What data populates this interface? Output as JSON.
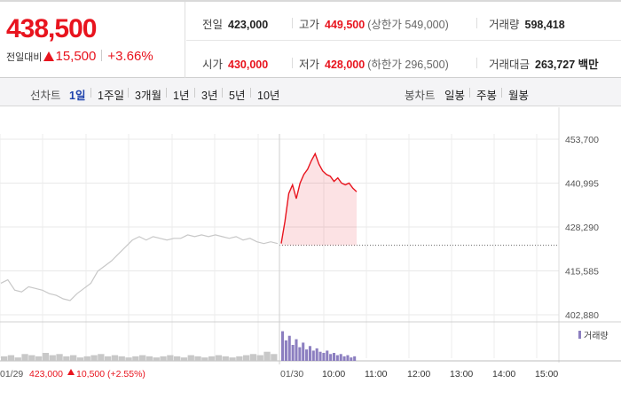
{
  "stock": {
    "price": "438,500",
    "change_label": "전일대비",
    "change_amount": "15,500",
    "change_percent": "+3.66%"
  },
  "stats": {
    "prev_close": {
      "label": "전일",
      "value": "423,000"
    },
    "high": {
      "label": "고가",
      "value": "449,500",
      "limit_label": "상한가",
      "limit_value": "549,000"
    },
    "volume": {
      "label": "거래량",
      "value": "598,418"
    },
    "open": {
      "label": "시가",
      "value": "430,000"
    },
    "low": {
      "label": "저가",
      "value": "428,000",
      "limit_label": "하한가",
      "limit_value": "296,500"
    },
    "trade_value": {
      "label": "거래대금",
      "value": "263,727 백만"
    }
  },
  "toolbar": {
    "line_chart_label": "선차트",
    "periods": [
      "1일",
      "1주일",
      "3개월",
      "1년",
      "3년",
      "5년",
      "10년"
    ],
    "active_period": "1일",
    "candle_label": "봉차트",
    "candles": [
      "일봉",
      "주봉",
      "월봉"
    ]
  },
  "colors": {
    "up": "#e8141e",
    "down": "#1d4ed8",
    "prev_day_line": "#c8c8c8",
    "volume_today": "#8c7fc0",
    "volume_prev": "#c8c8c8"
  },
  "chart_data": {
    "type": "line",
    "y_axis": {
      "min": 402880,
      "max": 453700,
      "ticks": [
        "453,700",
        "440,995",
        "428,290",
        "415,585",
        "402,880"
      ]
    },
    "x_ticks": [
      "10:00",
      "11:00",
      "12:00",
      "13:00",
      "14:00",
      "15:00"
    ],
    "reference_price": 423000,
    "prev_day": {
      "date": "01/29",
      "close": "423,000",
      "change": "10,500",
      "change_pct": "(+2.55%)",
      "points": [
        412000,
        413000,
        410000,
        409500,
        411000,
        410500,
        410000,
        409000,
        408500,
        407500,
        407000,
        409000,
        410500,
        412000,
        415500,
        417000,
        418500,
        420500,
        422500,
        424500,
        425500,
        424500,
        425500,
        425000,
        424500,
        425000,
        425000,
        426000,
        425500,
        426000,
        425500,
        426000,
        425500,
        425000,
        425500,
        424500,
        425000,
        424000,
        423500,
        424000,
        423500
      ]
    },
    "today": {
      "date": "01/30",
      "points": [
        423500,
        430000,
        438000,
        440500,
        436500,
        441000,
        443500,
        445000,
        447500,
        449500,
        446500,
        444500,
        443500,
        443000,
        441500,
        442500,
        441000,
        440500,
        441000,
        439500,
        438500
      ]
    },
    "volume_label": "거래량",
    "volume_prev": [
      4,
      5,
      3,
      6,
      5,
      4,
      7,
      5,
      6,
      4,
      5,
      3,
      4,
      5,
      6,
      4,
      5,
      4,
      3,
      4,
      5,
      4,
      3,
      4,
      5,
      4,
      3,
      5,
      4,
      3,
      4,
      5,
      4,
      3,
      4,
      5,
      6,
      5,
      8,
      6
    ],
    "volume_today": [
      26,
      18,
      22,
      14,
      19,
      12,
      16,
      10,
      13,
      9,
      11,
      8,
      7,
      9,
      6,
      7,
      5,
      6,
      4,
      5,
      3,
      4
    ]
  }
}
